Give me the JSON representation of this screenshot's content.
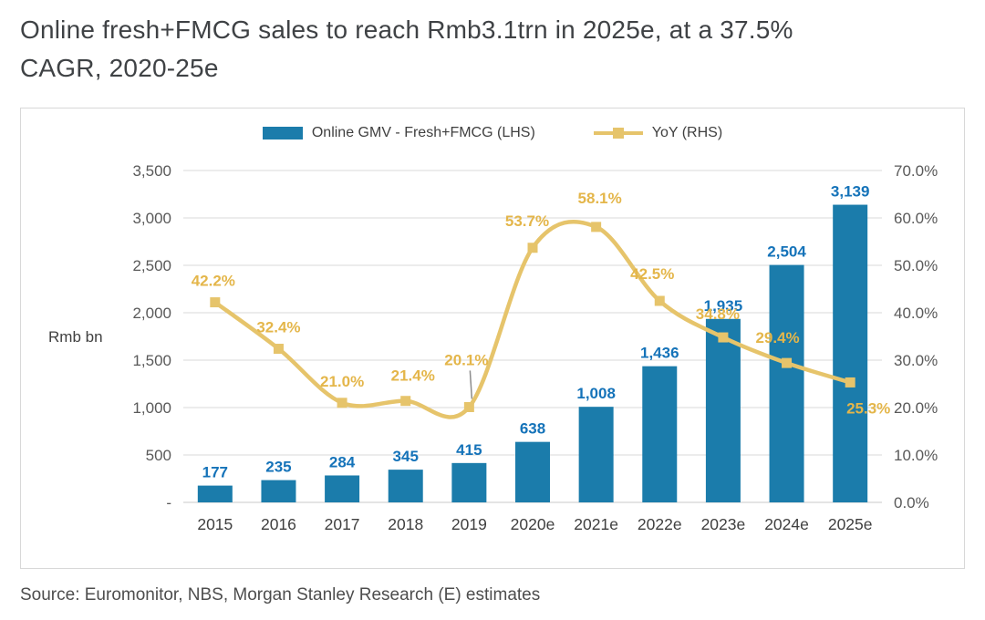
{
  "title": {
    "line1": "Online fresh+FMCG sales to reach Rmb3.1trn in 2025e, at a 37.5%",
    "line2": "CAGR, 2020-25e"
  },
  "source": "Source: Euromonitor, NBS, Morgan Stanley Research (E) estimates",
  "chart_data": {
    "type": "combo-bar-line",
    "categories": [
      "2015",
      "2016",
      "2017",
      "2018",
      "2019",
      "2020e",
      "2021e",
      "2022e",
      "2023e",
      "2024e",
      "2025e"
    ],
    "series": [
      {
        "name": "Online GMV - Fresh+FMCG (LHS)",
        "type": "bar",
        "axis": "left",
        "values": [
          177,
          235,
          284,
          345,
          415,
          638,
          1008,
          1436,
          1935,
          2504,
          3139
        ],
        "labels": [
          "177",
          "235",
          "284",
          "345",
          "415",
          "638",
          "1,008",
          "1,436",
          "1,935",
          "2,504",
          "3,139"
        ],
        "color": "#1B7CAB",
        "label_color": "#1573B9"
      },
      {
        "name": "YoY (RHS)",
        "type": "line",
        "axis": "right",
        "values": [
          42.2,
          32.4,
          21.0,
          21.4,
          20.1,
          53.7,
          58.1,
          42.5,
          34.8,
          29.4,
          25.3
        ],
        "labels": [
          "42.2%",
          "32.4%",
          "21.0%",
          "21.4%",
          "20.1%",
          "53.7%",
          "58.1%",
          "42.5%",
          "34.8%",
          "29.4%",
          "25.3%"
        ],
        "color": "#E6C46B",
        "label_color": "#E4B64A",
        "label_offsets": [
          [
            -2,
            -18
          ],
          [
            0,
            -18
          ],
          [
            0,
            -18
          ],
          [
            8,
            -22
          ],
          [
            -3,
            -46
          ],
          [
            -6,
            -24
          ],
          [
            4,
            -26
          ],
          [
            -8,
            -24
          ],
          [
            -6,
            -20
          ],
          [
            -10,
            -22
          ],
          [
            20,
            34
          ]
        ],
        "annotation_leader_index": 4
      }
    ],
    "left_axis": {
      "title": "Rmb bn",
      "min": 0,
      "max": 3500,
      "ticks_top_to_bottom": [
        "3,500",
        "3,000",
        "2,500",
        "2,000",
        "1,500",
        "1,000",
        "500",
        "-"
      ]
    },
    "right_axis": {
      "min": 0,
      "max": 70,
      "ticks_top_to_bottom": [
        "70.0%",
        "60.0%",
        "50.0%",
        "40.0%",
        "30.0%",
        "20.0%",
        "10.0%",
        "0.0%"
      ]
    },
    "grid": true,
    "legend_position": "top-center"
  }
}
